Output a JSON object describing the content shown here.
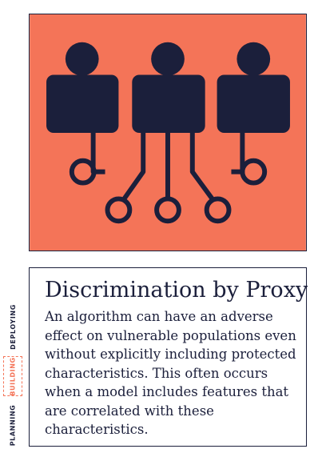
{
  "illustration": {
    "name": "three-connected-people-icon",
    "background_color": "#f47458",
    "figure_color": "#1b1f3b"
  },
  "card": {
    "title": "Discrimination by Proxy",
    "body": "An algorithm can have an adverse effect on vulnerable populations even without explicitly including protected characteristics. This often occurs when a model includes features that are correlated with these characteristics."
  },
  "stages": {
    "deploying": "DEPLOYING",
    "building": "BUILDING",
    "planning": "PLANNING",
    "active": "BUILDING",
    "active_color": "#f47458"
  }
}
